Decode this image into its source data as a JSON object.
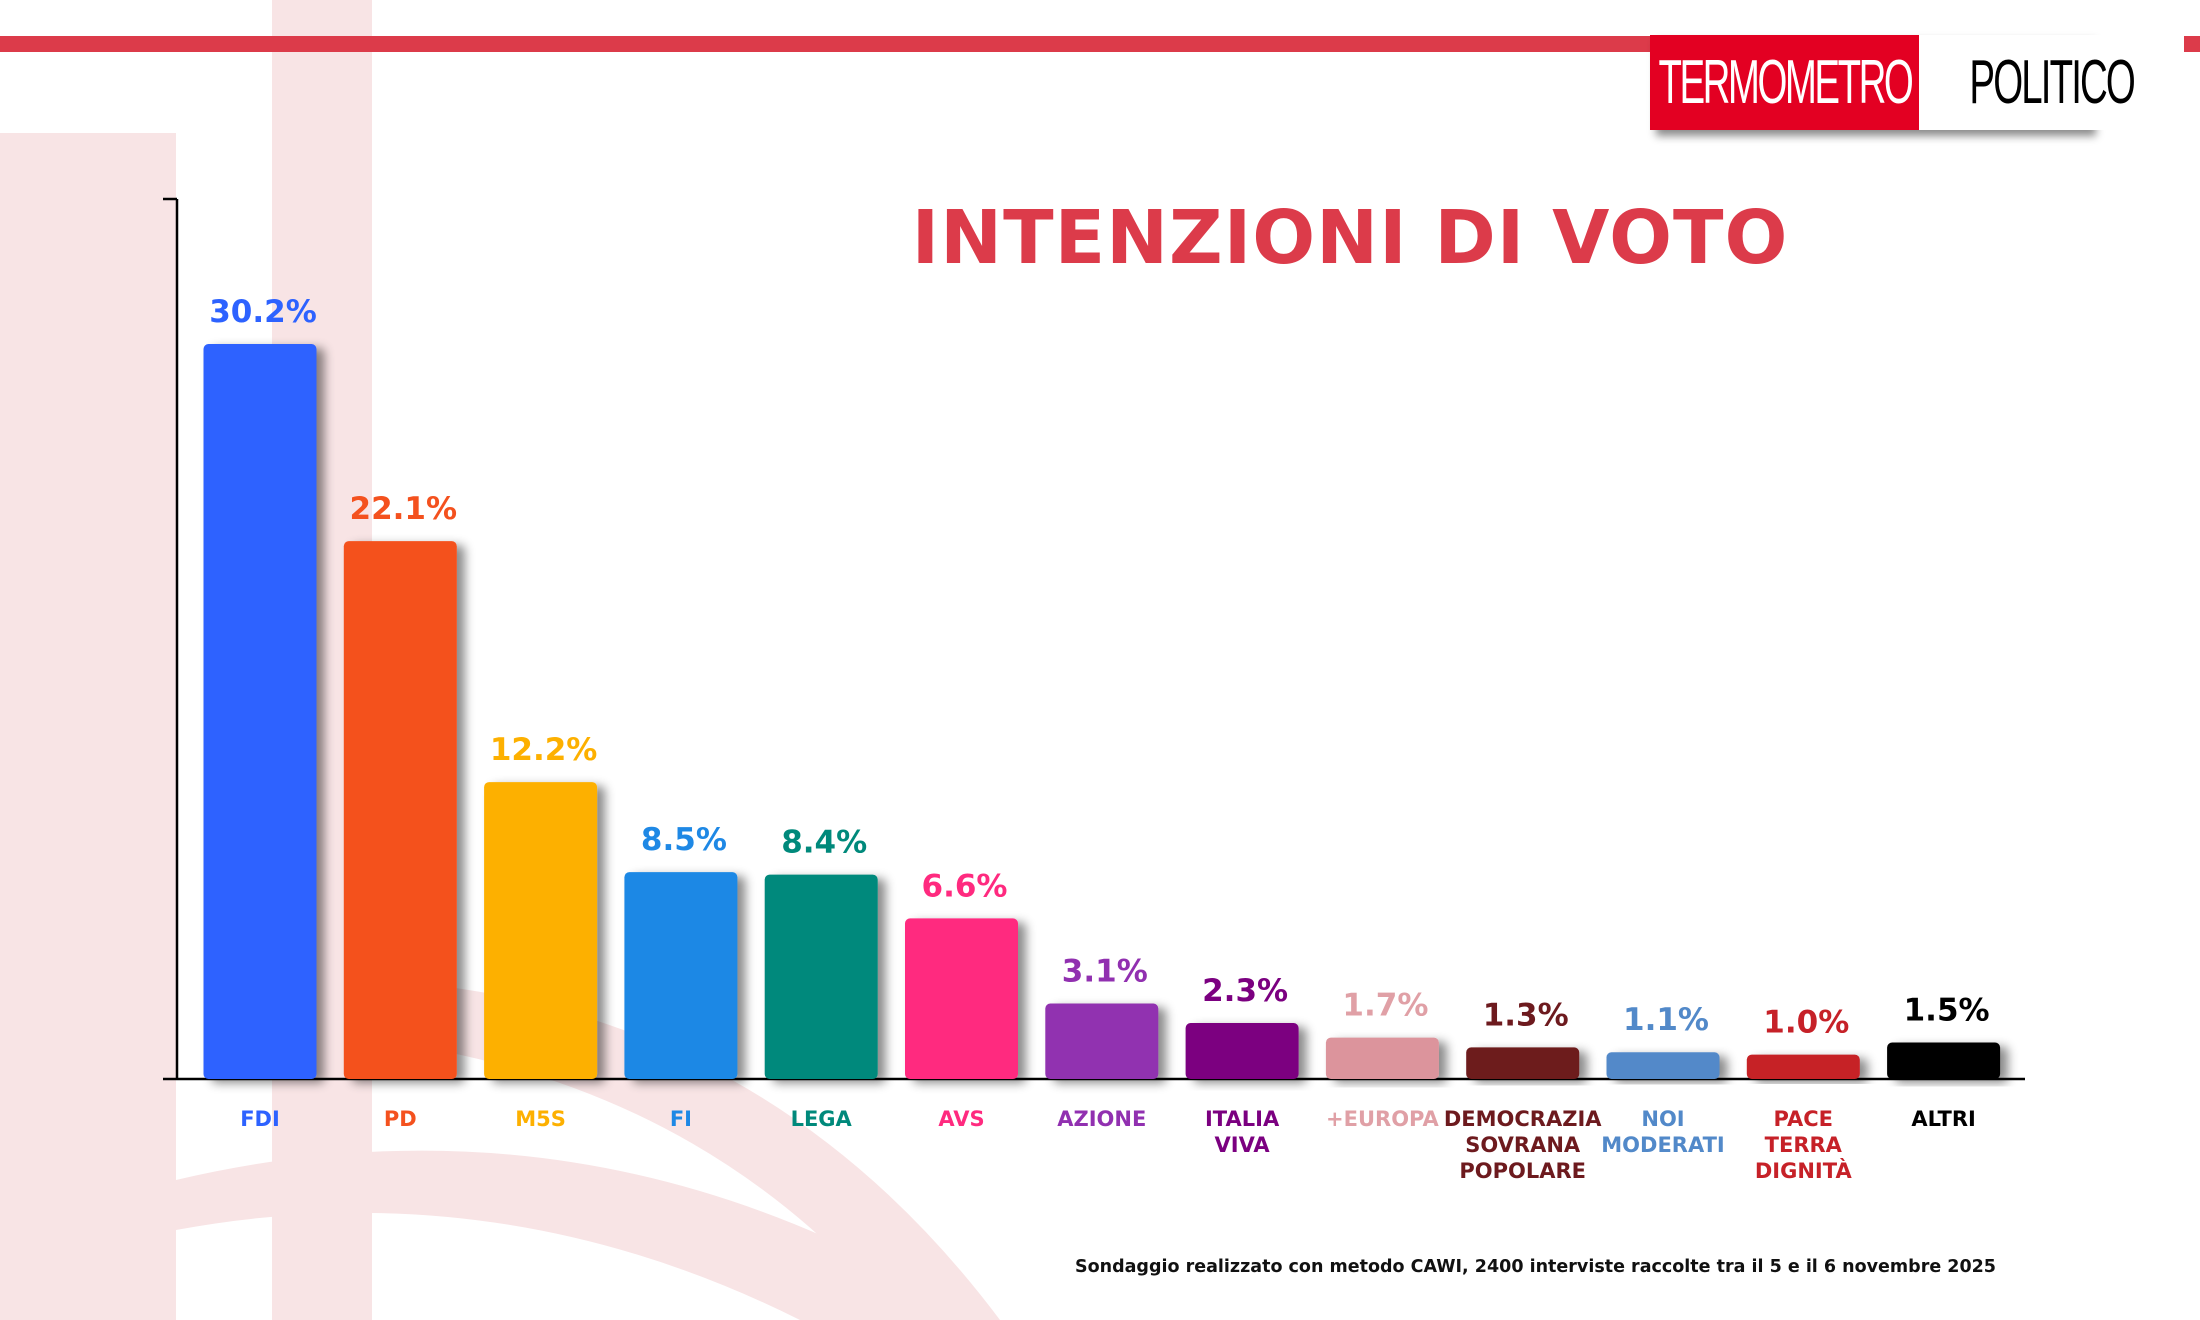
{
  "header": {
    "logo_left": "TERMOMETRO",
    "logo_right": "POLITICO"
  },
  "chart_data": {
    "type": "bar",
    "title": "INTENZIONI DI VOTO",
    "xlabel": "",
    "ylabel": "",
    "ylim": [
      0,
      32
    ],
    "grid": false,
    "categories": [
      "FDI",
      "PD",
      "M5S",
      "FI",
      "LEGA",
      "AVS",
      "AZIONE",
      "ITALIA VIVA",
      "+EUROPA",
      "DEMOCRAZIA SOVRANA POPOLARE",
      "NOI MODERATI",
      "PACE TERRA DIGNITÀ",
      "ALTRI"
    ],
    "category_lines": [
      [
        "FDI"
      ],
      [
        "PD"
      ],
      [
        "M5S"
      ],
      [
        "FI"
      ],
      [
        "LEGA"
      ],
      [
        "AVS"
      ],
      [
        "AZIONE"
      ],
      [
        "ITALIA",
        "VIVA"
      ],
      [
        "+EUROPA"
      ],
      [
        "DEMOCRAZIA",
        "SOVRANA",
        "POPOLARE"
      ],
      [
        "NOI",
        "MODERATI"
      ],
      [
        "PACE",
        "TERRA",
        "DIGNITÀ"
      ],
      [
        "ALTRI"
      ]
    ],
    "values": [
      30.2,
      22.1,
      12.2,
      8.5,
      8.4,
      6.6,
      3.1,
      2.3,
      1.7,
      1.3,
      1.1,
      1.0,
      1.5
    ],
    "value_labels": [
      "30.2%",
      "22.1%",
      "12.2%",
      "8.5%",
      "8.4%",
      "6.6%",
      "3.1%",
      "2.3%",
      "1.7%",
      "1.3%",
      "1.1%",
      "1.0%",
      "1.5%"
    ],
    "colors": [
      "#2d62ff",
      "#f4511e",
      "#fdb000",
      "#1e88e5",
      "#00897b",
      "#ff2a7f",
      "#9130b0",
      "#7b0080",
      "#dc949c",
      "#6d1a1e",
      "#5289c9",
      "#c62128",
      "#000000"
    ]
  },
  "footnote": "Sondaggio realizzato con metodo CAWI, 2400 interviste raccolte tra il 5 e il 6 novembre 2025"
}
